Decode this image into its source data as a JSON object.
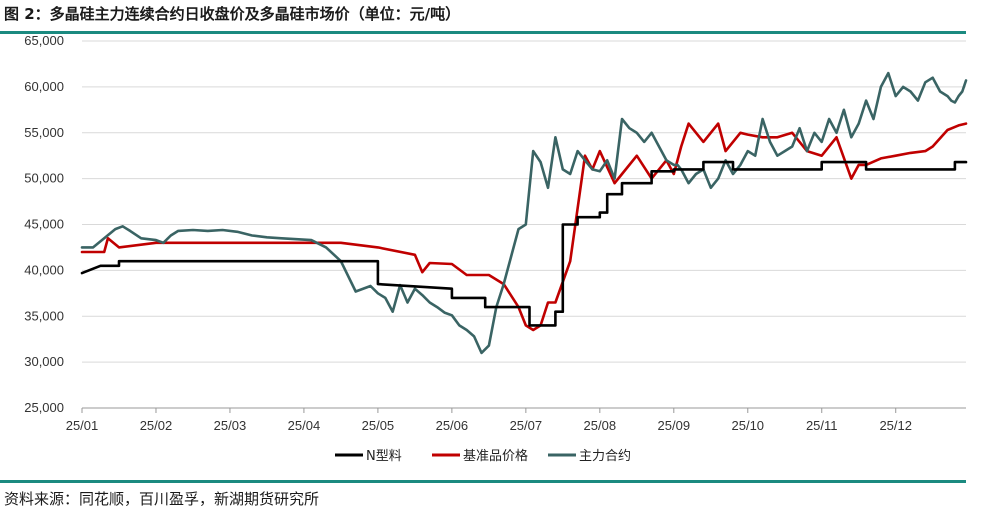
{
  "header": {
    "title": "图 2：多晶硅主力连续合约日收盘价及多晶硅市场价（单位：元/吨）"
  },
  "footer": {
    "source": "资料来源：同花顺，百川盈孚，新湖期货研究所"
  },
  "colors": {
    "n_type": "#000000",
    "benchmark": "#c00000",
    "main_contract": "#3a6464",
    "accent_rule": "#1b8a80"
  },
  "chart_data": {
    "type": "line",
    "title": "",
    "xlabel": "",
    "ylabel": "",
    "ylim": [
      25000,
      65000
    ],
    "yticks": [
      25000,
      30000,
      35000,
      40000,
      45000,
      50000,
      55000,
      60000,
      65000
    ],
    "ytick_labels": [
      "25,000",
      "30,000",
      "35,000",
      "40,000",
      "45,000",
      "50,000",
      "55,000",
      "60,000",
      "65,000"
    ],
    "xlim": [
      0,
      11.95
    ],
    "xticks": [
      0,
      1,
      2,
      3,
      4,
      5,
      6,
      7,
      8,
      9,
      10,
      11
    ],
    "xtick_labels": [
      "25/01",
      "25/02",
      "25/03",
      "25/04",
      "25/05",
      "25/06",
      "25/07",
      "25/08",
      "25/09",
      "25/10",
      "25/11",
      "25/12"
    ],
    "grid": "horizontal",
    "legend_position": "bottom",
    "series": [
      {
        "name": "N型料",
        "color": "#000000",
        "step": true,
        "x": [
          0,
          0.25,
          0.5,
          0.5,
          4.0,
          4.0,
          5.0,
          5.0,
          5.45,
          5.45,
          6.05,
          6.05,
          6.4,
          6.4,
          6.5,
          6.5,
          6.7,
          6.7,
          7.0,
          7.0,
          7.1,
          7.1,
          7.3,
          7.3,
          7.7,
          7.7,
          8.0,
          8.0,
          8.4,
          8.4,
          8.8,
          8.8,
          10.0,
          10.0,
          10.6,
          10.6,
          11.0,
          11.0,
          11.8,
          11.8,
          11.95
        ],
        "y": [
          39700,
          40500,
          40500,
          41000,
          41000,
          38500,
          38000,
          37000,
          37000,
          36000,
          36000,
          34000,
          34000,
          35500,
          35500,
          45000,
          45000,
          45800,
          45800,
          46300,
          46300,
          48300,
          48300,
          49500,
          49500,
          50800,
          50800,
          51000,
          51000,
          51800,
          51800,
          51000,
          51000,
          51800,
          51800,
          51000,
          51000,
          51000,
          51000,
          51800,
          51800
        ]
      },
      {
        "name": "基准品价格",
        "color": "#c00000",
        "x": [
          0,
          0.3,
          0.35,
          0.5,
          1.0,
          2.0,
          3.0,
          3.5,
          4.0,
          4.5,
          4.6,
          4.7,
          5.0,
          5.2,
          5.5,
          5.7,
          5.9,
          6.0,
          6.1,
          6.2,
          6.3,
          6.4,
          6.6,
          6.8,
          6.9,
          7.0,
          7.2,
          7.3,
          7.5,
          7.7,
          7.9,
          8.0,
          8.1,
          8.2,
          8.4,
          8.6,
          8.7,
          8.9,
          9.0,
          9.2,
          9.4,
          9.6,
          9.8,
          10.0,
          10.2,
          10.4,
          10.5,
          10.6,
          10.8,
          11.0,
          11.2,
          11.4,
          11.5,
          11.7,
          11.85,
          11.95
        ],
        "y": [
          42000,
          42000,
          43500,
          42500,
          43000,
          43000,
          43000,
          43000,
          42500,
          41700,
          39800,
          40800,
          40700,
          39500,
          39500,
          38500,
          36000,
          34000,
          33500,
          34000,
          36500,
          36500,
          41000,
          52500,
          51000,
          53000,
          49500,
          50500,
          52500,
          50000,
          52000,
          50500,
          53500,
          56000,
          54000,
          56000,
          53000,
          55000,
          54800,
          54500,
          54500,
          55000,
          53000,
          52500,
          54500,
          50000,
          51500,
          51500,
          52200,
          52500,
          52800,
          53000,
          53500,
          55300,
          55800,
          56000
        ]
      },
      {
        "name": "主力合约",
        "color": "#3a6464",
        "x": [
          0,
          0.15,
          0.3,
          0.45,
          0.55,
          0.65,
          0.8,
          1.0,
          1.1,
          1.2,
          1.3,
          1.5,
          1.7,
          1.9,
          2.1,
          2.3,
          2.5,
          2.7,
          2.9,
          3.1,
          3.3,
          3.5,
          3.7,
          3.9,
          4.0,
          4.1,
          4.2,
          4.3,
          4.4,
          4.5,
          4.6,
          4.7,
          4.8,
          4.9,
          5.0,
          5.1,
          5.2,
          5.3,
          5.4,
          5.5,
          5.6,
          5.7,
          5.8,
          5.9,
          6.0,
          6.1,
          6.2,
          6.3,
          6.4,
          6.5,
          6.6,
          6.7,
          6.8,
          6.9,
          7.0,
          7.1,
          7.2,
          7.3,
          7.4,
          7.5,
          7.6,
          7.7,
          7.8,
          7.9,
          8.0,
          8.05,
          8.1,
          8.2,
          8.3,
          8.4,
          8.5,
          8.6,
          8.7,
          8.8,
          8.9,
          9.0,
          9.1,
          9.2,
          9.3,
          9.4,
          9.5,
          9.6,
          9.7,
          9.8,
          9.9,
          10.0,
          10.1,
          10.2,
          10.3,
          10.4,
          10.5,
          10.6,
          10.7,
          10.8,
          10.9,
          11.0,
          11.1,
          11.2,
          11.3,
          11.4,
          11.5,
          11.6,
          11.7,
          11.75,
          11.8,
          11.85,
          11.9,
          11.95
        ],
        "y": [
          42500,
          42500,
          43500,
          44500,
          44800,
          44300,
          43500,
          43300,
          43000,
          43800,
          44300,
          44400,
          44300,
          44400,
          44200,
          43800,
          43600,
          43500,
          43400,
          43300,
          42500,
          41000,
          37700,
          38300,
          37500,
          37000,
          35500,
          38400,
          36500,
          38000,
          37300,
          36500,
          36000,
          35400,
          35100,
          34000,
          33500,
          32800,
          31000,
          31800,
          36000,
          38500,
          41500,
          44500,
          45000,
          53000,
          51800,
          49000,
          54500,
          51000,
          50500,
          53000,
          52000,
          51000,
          50800,
          52000,
          50000,
          56500,
          55500,
          55000,
          54000,
          55000,
          53500,
          52000,
          51500,
          51500,
          51000,
          49500,
          50500,
          51000,
          49000,
          50000,
          52000,
          50500,
          51500,
          53000,
          52500,
          56500,
          54000,
          52500,
          53000,
          53500,
          55500,
          53000,
          55000,
          54000,
          56500,
          55000,
          57500,
          54500,
          56000,
          58500,
          56500,
          60000,
          61500,
          59000,
          60000,
          59500,
          58500,
          60500,
          61000,
          59500,
          59000,
          58500,
          58300,
          59000,
          59500,
          60700
        ]
      }
    ]
  }
}
